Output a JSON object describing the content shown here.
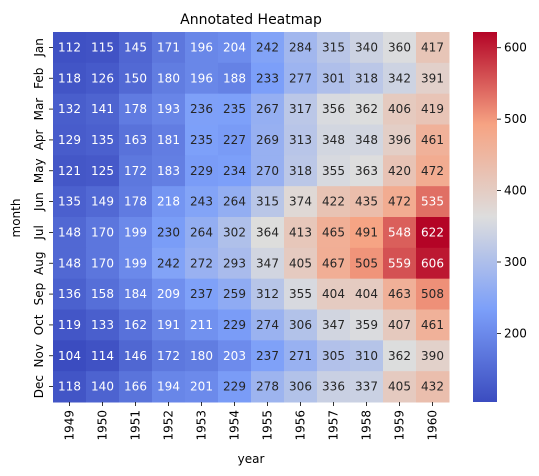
{
  "chart_data": {
    "type": "heatmap",
    "title": "Annotated Heatmap",
    "xlabel": "year",
    "ylabel": "month",
    "x_categories": [
      "1949",
      "1950",
      "1951",
      "1952",
      "1953",
      "1954",
      "1955",
      "1956",
      "1957",
      "1958",
      "1959",
      "1960"
    ],
    "y_categories": [
      "Jan",
      "Feb",
      "Mar",
      "Apr",
      "May",
      "Jun",
      "Jul",
      "Aug",
      "Sep",
      "Oct",
      "Nov",
      "Dec"
    ],
    "values": [
      [
        112,
        115,
        145,
        171,
        196,
        204,
        242,
        284,
        315,
        340,
        360,
        417
      ],
      [
        118,
        126,
        150,
        180,
        196,
        188,
        233,
        277,
        301,
        318,
        342,
        391
      ],
      [
        132,
        141,
        178,
        193,
        236,
        235,
        267,
        317,
        356,
        362,
        406,
        419
      ],
      [
        129,
        135,
        163,
        181,
        235,
        227,
        269,
        313,
        348,
        348,
        396,
        461
      ],
      [
        121,
        125,
        172,
        183,
        229,
        234,
        270,
        318,
        355,
        363,
        420,
        472
      ],
      [
        135,
        149,
        178,
        218,
        243,
        264,
        315,
        374,
        422,
        435,
        472,
        535
      ],
      [
        148,
        170,
        199,
        230,
        264,
        302,
        364,
        413,
        465,
        491,
        548,
        622
      ],
      [
        148,
        170,
        199,
        242,
        272,
        293,
        347,
        405,
        467,
        505,
        559,
        606
      ],
      [
        136,
        158,
        184,
        209,
        237,
        259,
        312,
        355,
        404,
        404,
        463,
        508
      ],
      [
        119,
        133,
        162,
        191,
        211,
        229,
        274,
        306,
        347,
        359,
        407,
        461
      ],
      [
        104,
        114,
        146,
        172,
        180,
        203,
        237,
        271,
        305,
        310,
        362,
        390
      ],
      [
        118,
        140,
        166,
        194,
        201,
        229,
        278,
        306,
        336,
        337,
        405,
        432
      ]
    ],
    "colormap": "coolwarm",
    "colorbar_ticks": [
      200,
      300,
      400,
      500,
      600
    ],
    "value_range": [
      104,
      622
    ],
    "annotated": true
  }
}
